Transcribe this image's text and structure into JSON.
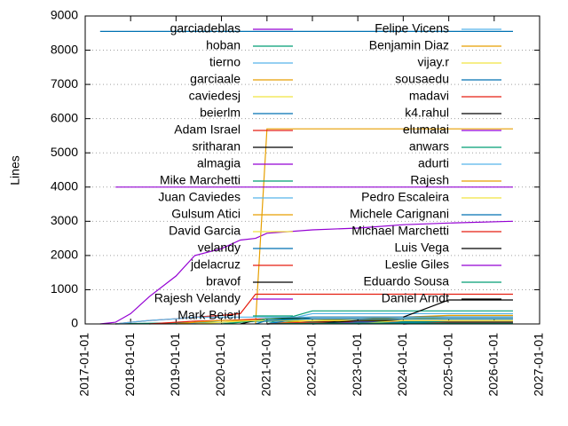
{
  "chart_data": {
    "type": "line",
    "y_label": "Lines",
    "x": [
      "2017-03-01",
      "2017-05-01",
      "2017-09-01",
      "2018-01-01",
      "2018-06-01",
      "2019-01-01",
      "2019-06-01",
      "2020-01-01",
      "2020-06-01",
      "2020-10-01",
      "2021-01-01",
      "2022-01-01",
      "2023-01-01",
      "2024-01-01",
      "2025-01-01",
      "2026-06-01"
    ],
    "xlim": [
      "2017-01-01",
      "2027-01-01"
    ],
    "xticks": [
      "2017-01-01",
      "2018-01-01",
      "2019-01-01",
      "2020-01-01",
      "2021-01-01",
      "2022-01-01",
      "2023-01-01",
      "2024-01-01",
      "2025-01-01",
      "2026-01-01",
      "2027-01-01"
    ],
    "ylim": [
      0,
      9000
    ],
    "yticks": [
      0,
      1000,
      2000,
      3000,
      4000,
      5000,
      6000,
      7000,
      8000,
      9000
    ],
    "grid": true,
    "legend": "top",
    "series": [
      {
        "name": "garciadeblas",
        "color": "#9400d3",
        "values": [
          null,
          0,
          50,
          300,
          800,
          1400,
          2000,
          2200,
          2450,
          2500,
          2650,
          2750,
          2800,
          2900,
          2950,
          3000
        ]
      },
      {
        "name": "hoban",
        "color": "#009e73",
        "values": [
          null,
          null,
          0,
          10,
          20,
          30,
          40,
          50,
          60,
          70,
          80,
          80,
          80,
          80,
          80,
          80
        ]
      },
      {
        "name": "tierno",
        "color": "#56b4e9",
        "values": [
          null,
          null,
          null,
          null,
          null,
          0,
          20,
          40,
          60,
          80,
          100,
          100,
          100,
          100,
          100,
          100
        ]
      },
      {
        "name": "garciaale",
        "color": "#e69f00",
        "values": [
          null,
          null,
          null,
          null,
          null,
          null,
          null,
          null,
          null,
          0,
          5700,
          5700,
          5700,
          5700,
          5700,
          5700
        ]
      },
      {
        "name": "caviedesj",
        "color": "#f0e442",
        "values": [
          null,
          null,
          null,
          null,
          null,
          null,
          null,
          0,
          50,
          100,
          150,
          200,
          200,
          200,
          200,
          200
        ]
      },
      {
        "name": "beierlm",
        "color": "#0072b2",
        "values": [
          null,
          8550,
          8550,
          8550,
          8550,
          8550,
          8550,
          8550,
          8550,
          8550,
          8550,
          8550,
          8550,
          8550,
          8550,
          8550
        ]
      },
      {
        "name": "Adam Israel",
        "color": "#e51e10",
        "values": [
          null,
          null,
          0,
          50,
          100,
          150,
          200,
          250,
          300,
          870,
          870,
          870,
          870,
          870,
          870,
          870
        ]
      },
      {
        "name": "sritharan",
        "color": "#000000",
        "values": [
          null,
          null,
          null,
          null,
          null,
          null,
          null,
          null,
          null,
          null,
          0,
          50,
          100,
          100,
          100,
          100
        ]
      },
      {
        "name": "almagia",
        "color": "#9400d3",
        "values": [
          null,
          null,
          4000,
          4000,
          4000,
          4000,
          4000,
          4000,
          4000,
          4000,
          4000,
          4000,
          4000,
          4000,
          4000,
          4000
        ]
      },
      {
        "name": "Mike Marchetti",
        "color": "#009e73",
        "values": [
          null,
          null,
          null,
          null,
          null,
          null,
          null,
          null,
          null,
          null,
          0,
          380,
          380,
          380,
          380,
          380
        ]
      },
      {
        "name": "Juan Caviedes",
        "color": "#56b4e9",
        "values": [
          null,
          null,
          null,
          null,
          null,
          null,
          null,
          null,
          null,
          null,
          0,
          300,
          300,
          300,
          300,
          300
        ]
      },
      {
        "name": "Gulsum Atici",
        "color": "#e69f00",
        "values": [
          null,
          null,
          null,
          null,
          null,
          null,
          null,
          null,
          null,
          null,
          0,
          100,
          150,
          200,
          250,
          250
        ]
      },
      {
        "name": "David Garcia",
        "color": "#f0e442",
        "values": [
          null,
          null,
          null,
          null,
          null,
          null,
          null,
          null,
          null,
          null,
          null,
          0,
          100,
          150,
          200,
          200
        ]
      },
      {
        "name": "velandy",
        "color": "#0072b2",
        "values": [
          null,
          null,
          null,
          null,
          null,
          null,
          null,
          null,
          null,
          null,
          0,
          200,
          200,
          200,
          200,
          200
        ]
      },
      {
        "name": "jdelacruz",
        "color": "#e51e10",
        "values": [
          null,
          null,
          null,
          null,
          0,
          50,
          80,
          100,
          120,
          140,
          150,
          150,
          150,
          150,
          150,
          150
        ]
      },
      {
        "name": "bravof",
        "color": "#000000",
        "values": [
          null,
          null,
          null,
          null,
          null,
          null,
          null,
          null,
          0,
          100,
          150,
          200,
          200,
          200,
          200,
          200
        ]
      },
      {
        "name": "Rajesh Velandy",
        "color": "#9400d3",
        "values": [
          null,
          null,
          null,
          null,
          null,
          null,
          null,
          null,
          null,
          null,
          0,
          50,
          50,
          50,
          50,
          50
        ]
      },
      {
        "name": "Mark Beierl",
        "color": "#009e73",
        "values": [
          null,
          null,
          null,
          null,
          null,
          null,
          null,
          0,
          50,
          100,
          150,
          150,
          150,
          150,
          150,
          150
        ]
      },
      {
        "name": "Felipe Vicens",
        "color": "#56b4e9",
        "values": [
          null,
          null,
          0,
          50,
          100,
          150,
          200,
          200,
          200,
          200,
          200,
          200,
          200,
          200,
          200,
          200
        ]
      },
      {
        "name": "Benjamin Diaz",
        "color": "#e69f00",
        "values": [
          null,
          null,
          null,
          null,
          null,
          0,
          50,
          100,
          100,
          100,
          100,
          100,
          100,
          100,
          100,
          100
        ]
      },
      {
        "name": "vijay.r",
        "color": "#f0e442",
        "values": [
          null,
          null,
          null,
          null,
          null,
          null,
          0,
          50,
          80,
          100,
          100,
          100,
          100,
          100,
          100,
          100
        ]
      },
      {
        "name": "sousaedu",
        "color": "#0072b2",
        "values": [
          null,
          null,
          null,
          null,
          null,
          null,
          null,
          null,
          null,
          0,
          100,
          150,
          150,
          150,
          150,
          150
        ]
      },
      {
        "name": "madavi",
        "color": "#e51e10",
        "values": [
          null,
          null,
          null,
          null,
          null,
          null,
          null,
          null,
          null,
          null,
          0,
          50,
          50,
          50,
          50,
          50
        ]
      },
      {
        "name": "k4.rahul",
        "color": "#000000",
        "values": [
          null,
          null,
          null,
          null,
          null,
          null,
          null,
          null,
          null,
          null,
          null,
          0,
          100,
          100,
          100,
          100
        ]
      },
      {
        "name": "elumalai",
        "color": "#9400d3",
        "values": [
          null,
          null,
          null,
          null,
          null,
          null,
          null,
          null,
          null,
          null,
          null,
          0,
          50,
          50,
          50,
          50
        ]
      },
      {
        "name": "anwars",
        "color": "#009e73",
        "values": [
          null,
          null,
          null,
          null,
          null,
          null,
          null,
          null,
          null,
          null,
          null,
          0,
          30,
          30,
          30,
          30
        ]
      },
      {
        "name": "adurti",
        "color": "#56b4e9",
        "values": [
          null,
          null,
          null,
          null,
          null,
          null,
          null,
          null,
          null,
          null,
          null,
          null,
          0,
          30,
          30,
          30
        ]
      },
      {
        "name": "Rajesh",
        "color": "#e69f00",
        "values": [
          null,
          null,
          null,
          null,
          null,
          null,
          null,
          null,
          null,
          null,
          null,
          null,
          0,
          50,
          50,
          50
        ]
      },
      {
        "name": "Pedro Escaleira",
        "color": "#f0e442",
        "values": [
          null,
          null,
          null,
          null,
          null,
          null,
          null,
          null,
          null,
          null,
          null,
          null,
          0,
          100,
          100,
          100
        ]
      },
      {
        "name": "Michele Carignani",
        "color": "#0072b2",
        "values": [
          null,
          null,
          null,
          null,
          null,
          null,
          null,
          null,
          null,
          null,
          null,
          null,
          0,
          50,
          50,
          50
        ]
      },
      {
        "name": "Michael Marchetti",
        "color": "#e51e10",
        "values": [
          null,
          null,
          null,
          null,
          null,
          null,
          null,
          null,
          null,
          null,
          null,
          null,
          null,
          0,
          50,
          50
        ]
      },
      {
        "name": "Luis Vega",
        "color": "#000000",
        "values": [
          null,
          null,
          null,
          null,
          null,
          null,
          null,
          null,
          null,
          null,
          null,
          null,
          null,
          0,
          30,
          30
        ]
      },
      {
        "name": "Leslie Giles",
        "color": "#9400d3",
        "values": [
          null,
          null,
          null,
          null,
          null,
          null,
          null,
          null,
          null,
          null,
          null,
          null,
          null,
          0,
          20,
          20
        ]
      },
      {
        "name": "Eduardo Sousa",
        "color": "#009e73",
        "values": [
          null,
          null,
          null,
          null,
          null,
          null,
          null,
          null,
          null,
          null,
          0,
          20,
          20,
          20,
          20,
          20
        ]
      },
      {
        "name": "Daniel Arndt",
        "color": "#000000",
        "values": [
          null,
          null,
          null,
          null,
          null,
          null,
          null,
          null,
          null,
          null,
          null,
          null,
          null,
          200,
          700,
          700
        ]
      }
    ]
  }
}
